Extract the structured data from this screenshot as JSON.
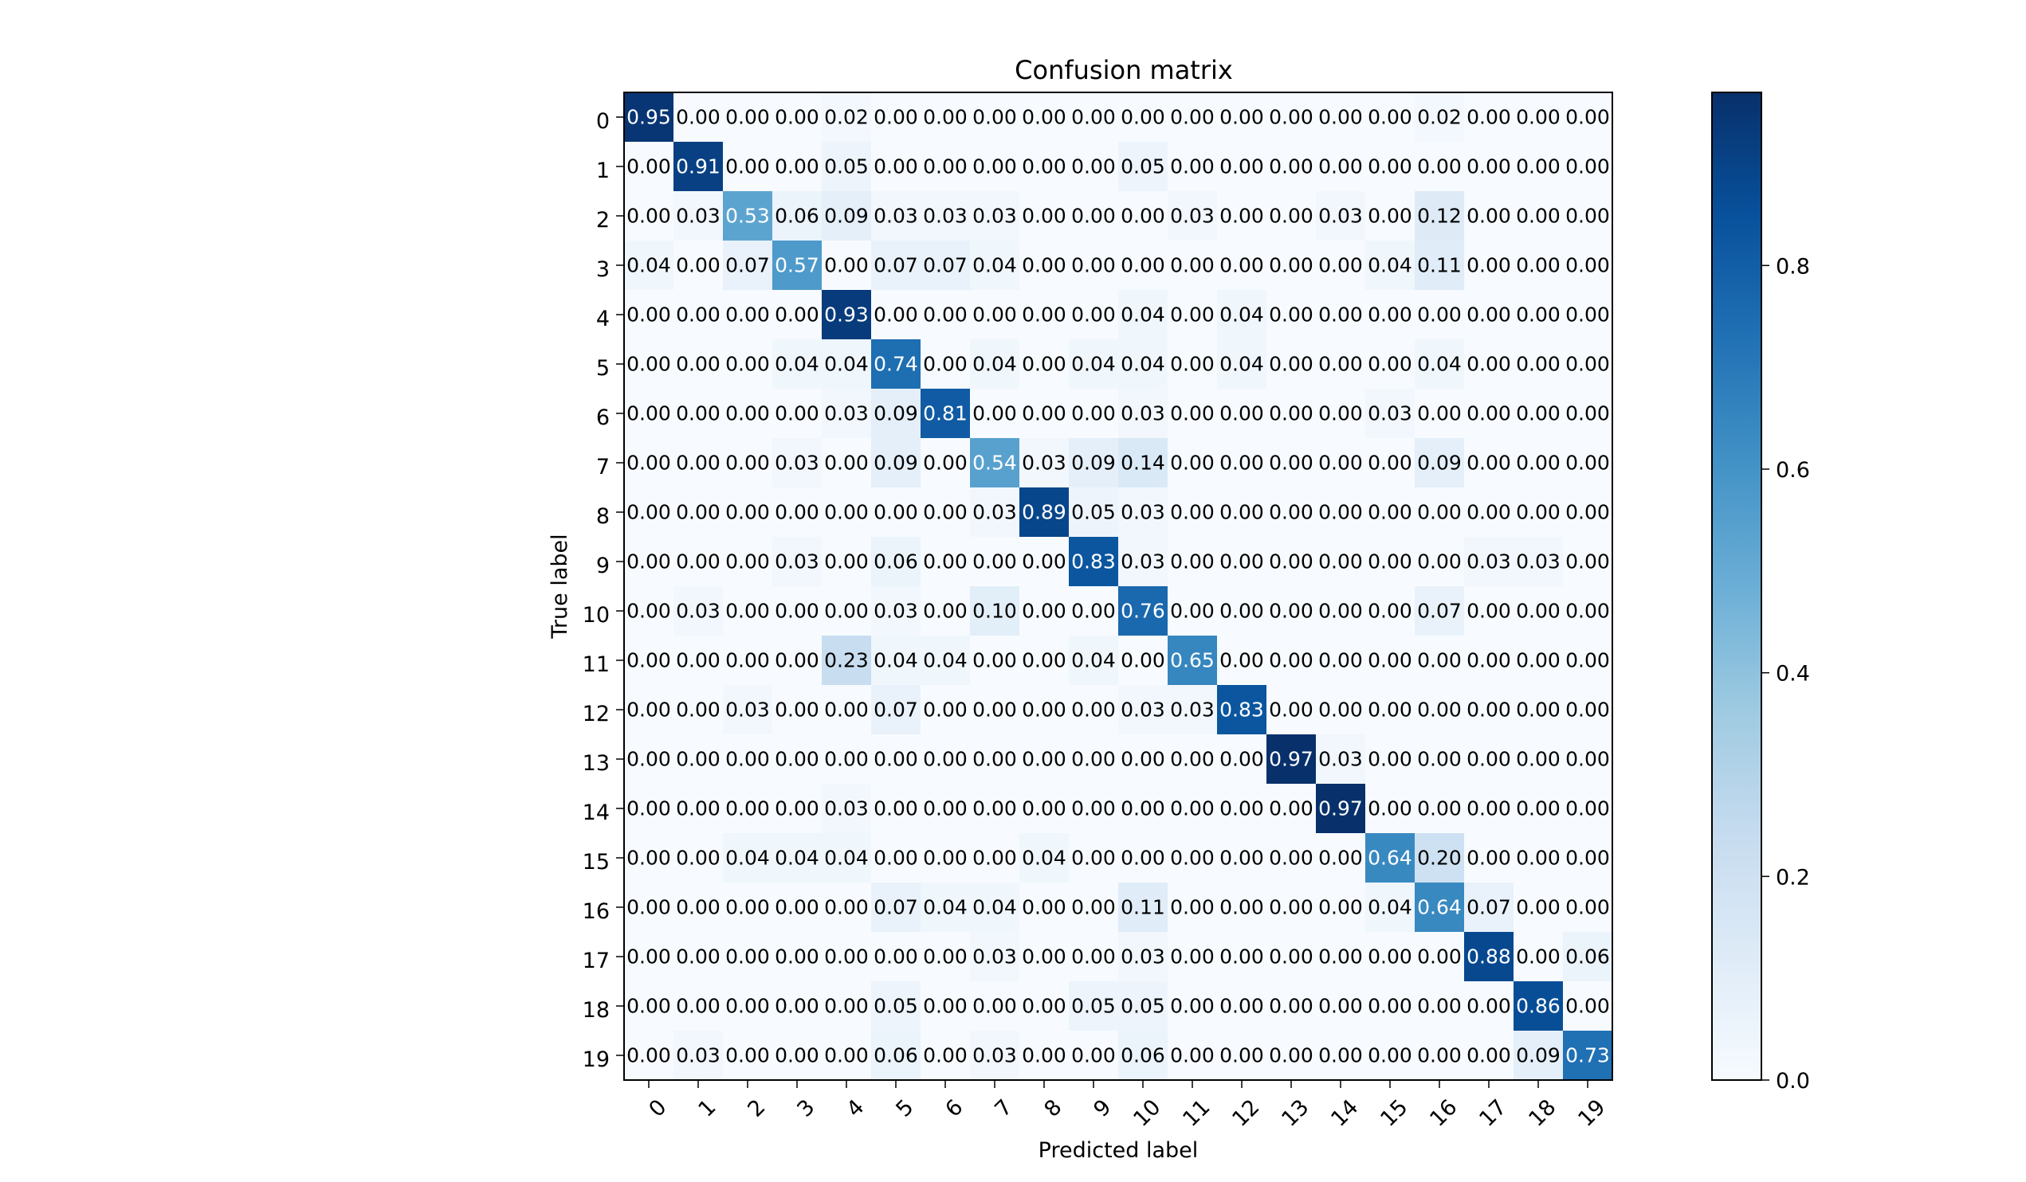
{
  "chart_data": {
    "type": "heatmap",
    "title": "Confusion matrix",
    "xlabel": "Predicted label",
    "ylabel": "True label",
    "labels": [
      "0",
      "1",
      "2",
      "3",
      "4",
      "5",
      "6",
      "7",
      "8",
      "9",
      "10",
      "11",
      "12",
      "13",
      "14",
      "15",
      "16",
      "17",
      "18",
      "19"
    ],
    "matrix": [
      [
        0.95,
        0.0,
        0.0,
        0.0,
        0.02,
        0.0,
        0.0,
        0.0,
        0.0,
        0.0,
        0.0,
        0.0,
        0.0,
        0.0,
        0.0,
        0.0,
        0.02,
        0.0,
        0.0,
        0.0
      ],
      [
        0.0,
        0.91,
        0.0,
        0.0,
        0.05,
        0.0,
        0.0,
        0.0,
        0.0,
        0.0,
        0.05,
        0.0,
        0.0,
        0.0,
        0.0,
        0.0,
        0.0,
        0.0,
        0.0,
        0.0
      ],
      [
        0.0,
        0.03,
        0.53,
        0.06,
        0.09,
        0.03,
        0.03,
        0.03,
        0.0,
        0.0,
        0.0,
        0.03,
        0.0,
        0.0,
        0.03,
        0.0,
        0.12,
        0.0,
        0.0,
        0.0
      ],
      [
        0.04,
        0.0,
        0.07,
        0.57,
        0.0,
        0.07,
        0.07,
        0.04,
        0.0,
        0.0,
        0.0,
        0.0,
        0.0,
        0.0,
        0.0,
        0.04,
        0.11,
        0.0,
        0.0,
        0.0
      ],
      [
        0.0,
        0.0,
        0.0,
        0.0,
        0.93,
        0.0,
        0.0,
        0.0,
        0.0,
        0.0,
        0.04,
        0.0,
        0.04,
        0.0,
        0.0,
        0.0,
        0.0,
        0.0,
        0.0,
        0.0
      ],
      [
        0.0,
        0.0,
        0.0,
        0.04,
        0.04,
        0.74,
        0.0,
        0.04,
        0.0,
        0.04,
        0.04,
        0.0,
        0.04,
        0.0,
        0.0,
        0.0,
        0.04,
        0.0,
        0.0,
        0.0
      ],
      [
        0.0,
        0.0,
        0.0,
        0.0,
        0.03,
        0.09,
        0.81,
        0.0,
        0.0,
        0.0,
        0.03,
        0.0,
        0.0,
        0.0,
        0.0,
        0.03,
        0.0,
        0.0,
        0.0,
        0.0
      ],
      [
        0.0,
        0.0,
        0.0,
        0.03,
        0.0,
        0.09,
        0.0,
        0.54,
        0.03,
        0.09,
        0.14,
        0.0,
        0.0,
        0.0,
        0.0,
        0.0,
        0.09,
        0.0,
        0.0,
        0.0
      ],
      [
        0.0,
        0.0,
        0.0,
        0.0,
        0.0,
        0.0,
        0.0,
        0.03,
        0.89,
        0.05,
        0.03,
        0.0,
        0.0,
        0.0,
        0.0,
        0.0,
        0.0,
        0.0,
        0.0,
        0.0
      ],
      [
        0.0,
        0.0,
        0.0,
        0.03,
        0.0,
        0.06,
        0.0,
        0.0,
        0.0,
        0.83,
        0.03,
        0.0,
        0.0,
        0.0,
        0.0,
        0.0,
        0.0,
        0.03,
        0.03,
        0.0
      ],
      [
        0.0,
        0.03,
        0.0,
        0.0,
        0.0,
        0.03,
        0.0,
        0.1,
        0.0,
        0.0,
        0.76,
        0.0,
        0.0,
        0.0,
        0.0,
        0.0,
        0.07,
        0.0,
        0.0,
        0.0
      ],
      [
        0.0,
        0.0,
        0.0,
        0.0,
        0.23,
        0.04,
        0.04,
        0.0,
        0.0,
        0.04,
        0.0,
        0.65,
        0.0,
        0.0,
        0.0,
        0.0,
        0.0,
        0.0,
        0.0,
        0.0
      ],
      [
        0.0,
        0.0,
        0.03,
        0.0,
        0.0,
        0.07,
        0.0,
        0.0,
        0.0,
        0.0,
        0.03,
        0.03,
        0.83,
        0.0,
        0.0,
        0.0,
        0.0,
        0.0,
        0.0,
        0.0
      ],
      [
        0.0,
        0.0,
        0.0,
        0.0,
        0.0,
        0.0,
        0.0,
        0.0,
        0.0,
        0.0,
        0.0,
        0.0,
        0.0,
        0.97,
        0.03,
        0.0,
        0.0,
        0.0,
        0.0,
        0.0
      ],
      [
        0.0,
        0.0,
        0.0,
        0.0,
        0.03,
        0.0,
        0.0,
        0.0,
        0.0,
        0.0,
        0.0,
        0.0,
        0.0,
        0.0,
        0.97,
        0.0,
        0.0,
        0.0,
        0.0,
        0.0
      ],
      [
        0.0,
        0.0,
        0.04,
        0.04,
        0.04,
        0.0,
        0.0,
        0.0,
        0.04,
        0.0,
        0.0,
        0.0,
        0.0,
        0.0,
        0.0,
        0.64,
        0.2,
        0.0,
        0.0,
        0.0
      ],
      [
        0.0,
        0.0,
        0.0,
        0.0,
        0.0,
        0.07,
        0.04,
        0.04,
        0.0,
        0.0,
        0.11,
        0.0,
        0.0,
        0.0,
        0.0,
        0.04,
        0.64,
        0.07,
        0.0,
        0.0
      ],
      [
        0.0,
        0.0,
        0.0,
        0.0,
        0.0,
        0.0,
        0.0,
        0.03,
        0.0,
        0.0,
        0.03,
        0.0,
        0.0,
        0.0,
        0.0,
        0.0,
        0.0,
        0.88,
        0.0,
        0.06
      ],
      [
        0.0,
        0.0,
        0.0,
        0.0,
        0.0,
        0.05,
        0.0,
        0.0,
        0.0,
        0.05,
        0.05,
        0.0,
        0.0,
        0.0,
        0.0,
        0.0,
        0.0,
        0.0,
        0.86,
        0.0
      ],
      [
        0.0,
        0.03,
        0.0,
        0.0,
        0.0,
        0.06,
        0.0,
        0.03,
        0.0,
        0.0,
        0.06,
        0.0,
        0.0,
        0.0,
        0.0,
        0.0,
        0.0,
        0.0,
        0.09,
        0.73
      ]
    ],
    "colormap": "Blues",
    "value_range": [
      0,
      0.97
    ],
    "colorbar_ticks": [
      "0.0",
      "0.2",
      "0.4",
      "0.6",
      "0.8"
    ],
    "grid": false,
    "legend": "colorbar-right"
  }
}
